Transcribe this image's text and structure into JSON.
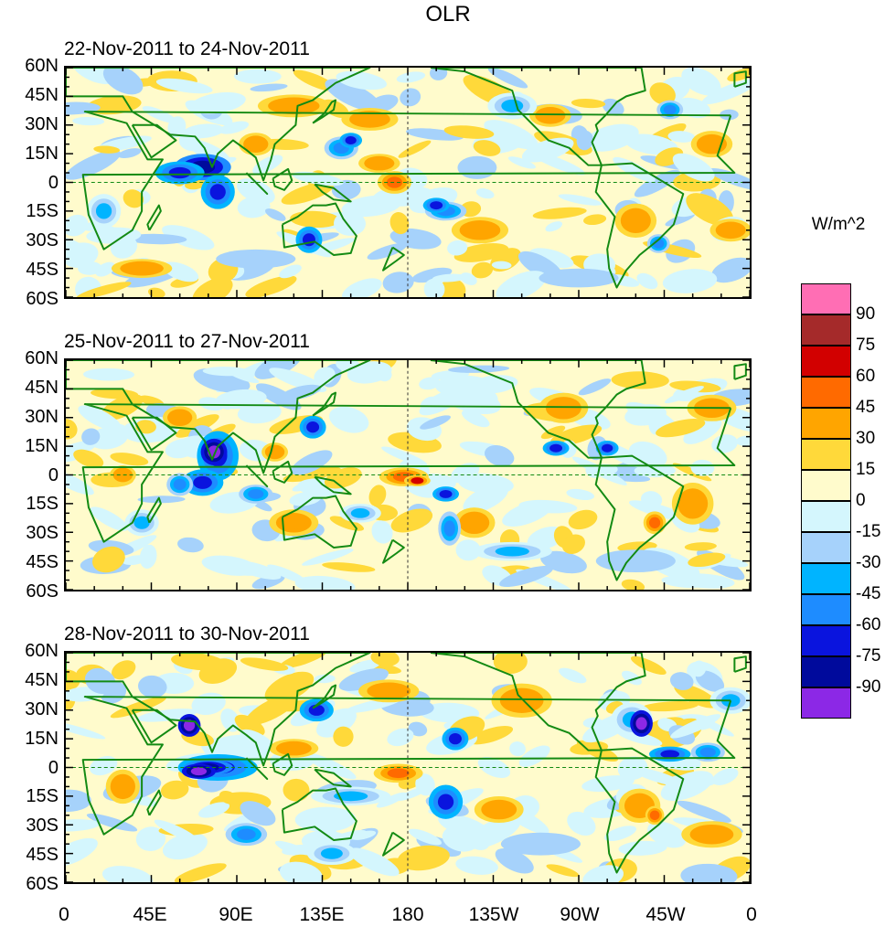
{
  "title": "OLR",
  "units": "W/m^2",
  "panels": [
    {
      "label": "22-Nov-2011 to 24-Nov-2011"
    },
    {
      "label": "25-Nov-2011 to 27-Nov-2011"
    },
    {
      "label": "28-Nov-2011 to 30-Nov-2011"
    }
  ],
  "lat_labels": [
    "60N",
    "45N",
    "30N",
    "15N",
    "0",
    "15S",
    "30S",
    "45S",
    "60S"
  ],
  "lon_labels": [
    "0",
    "45E",
    "90E",
    "135E",
    "180",
    "135W",
    "90W",
    "45W",
    "0"
  ],
  "colorbar": {
    "levels": [
      "90",
      "75",
      "60",
      "45",
      "30",
      "15",
      "0",
      "-15",
      "-30",
      "-45",
      "-60",
      "-75",
      "-90"
    ],
    "colors": [
      "#ff6eb4",
      "#a52a2a",
      "#d20000",
      "#ff6a00",
      "#ffa500",
      "#ffd93a",
      "#fffbcc",
      "#d4f6fd",
      "#a6d2fb",
      "#00b4ff",
      "#1e8cff",
      "#0a14de",
      "#000a9c",
      "#8c28e6"
    ]
  },
  "map_colors": {
    "land_outline": "#138a13",
    "grid_dash": "#138a13",
    "background": "#fffbcc"
  }
}
